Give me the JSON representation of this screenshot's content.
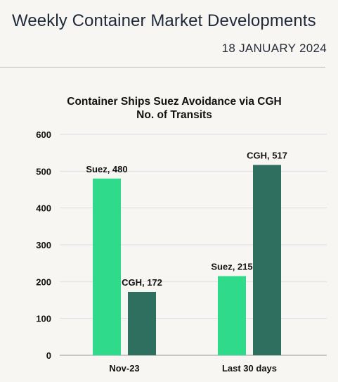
{
  "header": {
    "title": "Weekly Container Market Developments",
    "date": "18 JANUARY 2024"
  },
  "chart_data": {
    "type": "bar",
    "title": "Container Ships Suez Avoidance via CGH",
    "subtitle": "No. of Transits",
    "categories": [
      "Nov-23",
      "Last 30 days"
    ],
    "series": [
      {
        "name": "Suez",
        "values": [
          480,
          215
        ],
        "color": "#2fdb8a",
        "labels": [
          "Suez, 480",
          "Suez, 215"
        ]
      },
      {
        "name": "CGH",
        "values": [
          172,
          517
        ],
        "color": "#2f6f5f",
        "labels": [
          "CGH, 172",
          "CGH, 517"
        ]
      }
    ],
    "ylim": [
      0,
      600
    ],
    "yticks": [
      "0",
      "100",
      "200",
      "300",
      "400",
      "500",
      "600"
    ],
    "grid": true,
    "legend": "none"
  }
}
